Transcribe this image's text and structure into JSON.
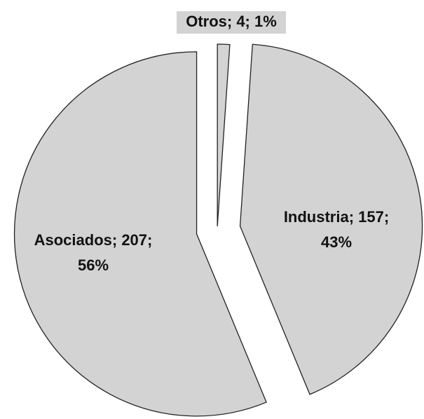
{
  "chart_data": {
    "type": "pie",
    "values": [
      4,
      157,
      207
    ],
    "labels": [
      [
        "Otros; 4; 1%"
      ],
      [
        "Industria; 157;",
        "43%"
      ],
      [
        "Asociados; 207;",
        "56%"
      ]
    ],
    "color": "#d3d3d3",
    "exploded": true
  }
}
